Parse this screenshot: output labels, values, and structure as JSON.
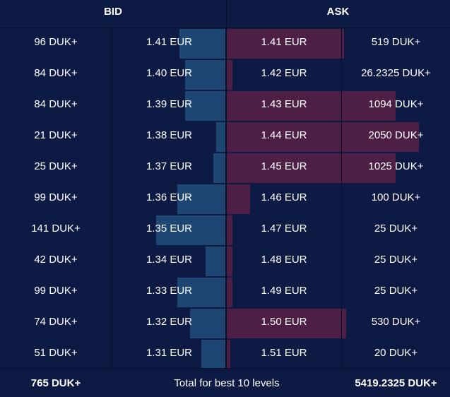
{
  "header": {
    "bid_label": "BID",
    "ask_label": "ASK"
  },
  "colors": {
    "background": "#0c1a44",
    "bid_bar": "#1e4673",
    "ask_bar": "#4d1f45",
    "text": "#ffffff"
  },
  "rows": [
    {
      "bid_qty": "96 DUK+",
      "bid_price": "1.41 EUR",
      "ask_price": "1.41 EUR",
      "ask_qty": "519 DUK+",
      "bid_depth": 0.41,
      "ask_depth": 0.61
    },
    {
      "bid_qty": "84 DUK+",
      "bid_price": "1.40 EUR",
      "ask_price": "1.42 EUR",
      "ask_qty": "26.2325 DUK+",
      "bid_depth": 0.36,
      "ask_depth": 0.03
    },
    {
      "bid_qty": "84 DUK+",
      "bid_price": "1.39 EUR",
      "ask_price": "1.43 EUR",
      "ask_qty": "1094 DUK+",
      "bid_depth": 0.36,
      "ask_depth": 0.88
    },
    {
      "bid_qty": "21 DUK+",
      "bid_price": "1.38 EUR",
      "ask_price": "1.44 EUR",
      "ask_qty": "2050 DUK+",
      "bid_depth": 0.09,
      "ask_depth": 1.0
    },
    {
      "bid_qty": "25 DUK+",
      "bid_price": "1.37 EUR",
      "ask_price": "1.45 EUR",
      "ask_qty": "1025 DUK+",
      "bid_depth": 0.11,
      "ask_depth": 0.88
    },
    {
      "bid_qty": "99 DUK+",
      "bid_price": "1.36 EUR",
      "ask_price": "1.46 EUR",
      "ask_qty": "100 DUK+",
      "bid_depth": 0.43,
      "ask_depth": 0.12
    },
    {
      "bid_qty": "141 DUK+",
      "bid_price": "1.35 EUR",
      "ask_price": "1.47 EUR",
      "ask_qty": "25 DUK+",
      "bid_depth": 0.62,
      "ask_depth": 0.03
    },
    {
      "bid_qty": "42 DUK+",
      "bid_price": "1.34 EUR",
      "ask_price": "1.48 EUR",
      "ask_qty": "25 DUK+",
      "bid_depth": 0.18,
      "ask_depth": 0.03
    },
    {
      "bid_qty": "99 DUK+",
      "bid_price": "1.33 EUR",
      "ask_price": "1.49 EUR",
      "ask_qty": "25 DUK+",
      "bid_depth": 0.43,
      "ask_depth": 0.03
    },
    {
      "bid_qty": "74 DUK+",
      "bid_price": "1.32 EUR",
      "ask_price": "1.50 EUR",
      "ask_qty": "530 DUK+",
      "bid_depth": 0.32,
      "ask_depth": 0.62
    },
    {
      "bid_qty": "51 DUK+",
      "bid_price": "1.31 EUR",
      "ask_price": "1.51 EUR",
      "ask_qty": "20 DUK+",
      "bid_depth": 0.22,
      "ask_depth": 0.02
    }
  ],
  "footer": {
    "bid_total": "765 DUK+",
    "label": "Total for best 10 levels",
    "ask_total": "5419.2325 DUK+"
  }
}
